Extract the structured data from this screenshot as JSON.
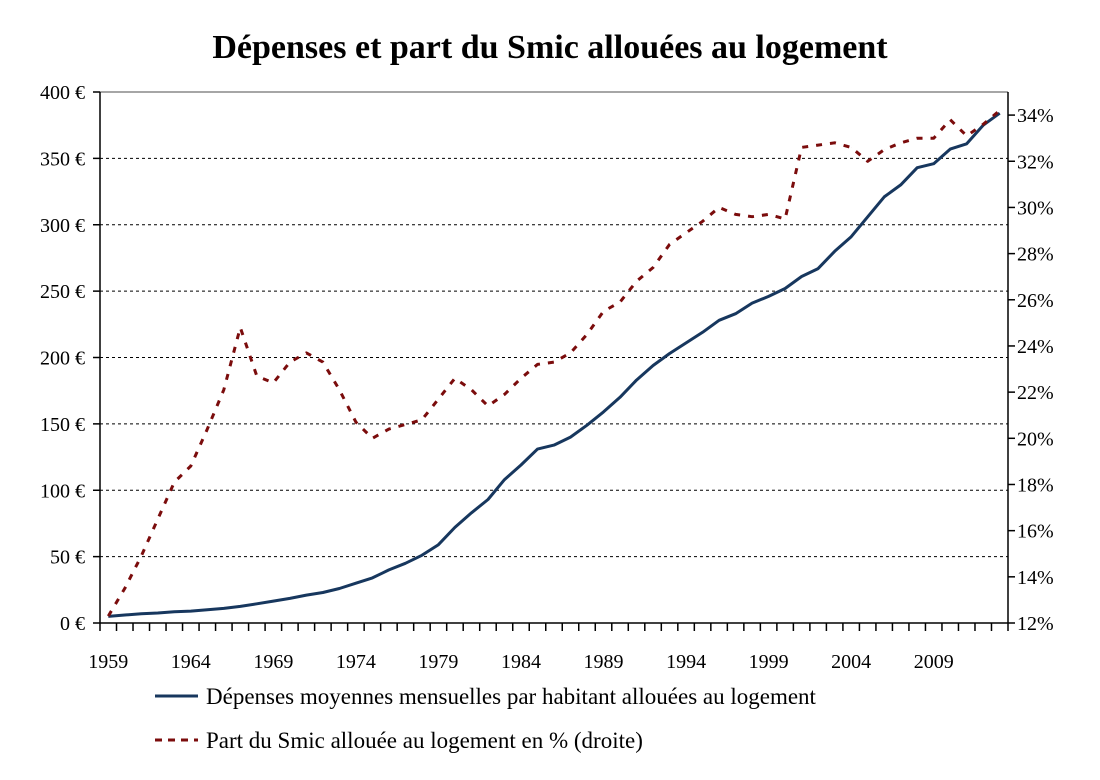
{
  "chart_data": {
    "type": "line",
    "title": "Dépenses et part du Smic allouées au logement",
    "x": [
      1959,
      1960,
      1961,
      1962,
      1963,
      1964,
      1965,
      1966,
      1967,
      1968,
      1969,
      1970,
      1971,
      1972,
      1973,
      1974,
      1975,
      1976,
      1977,
      1978,
      1979,
      1980,
      1981,
      1982,
      1983,
      1984,
      1985,
      1986,
      1987,
      1988,
      1989,
      1990,
      1991,
      1992,
      1993,
      1994,
      1995,
      1996,
      1997,
      1998,
      1999,
      2000,
      2001,
      2002,
      2003,
      2004,
      2005,
      2006,
      2007,
      2008,
      2009,
      2010,
      2011,
      2012,
      2013
    ],
    "x_tick_labels": [
      "1959",
      "1964",
      "1969",
      "1974",
      "1979",
      "1984",
      "1989",
      "1994",
      "1999",
      "2004",
      "2009"
    ],
    "y_left": {
      "min": 0,
      "max": 400,
      "step": 50,
      "tick_labels": [
        "0 €",
        "50 €",
        "100 €",
        "150 €",
        "200 €",
        "250 €",
        "300 €",
        "350 €",
        "400 €"
      ]
    },
    "y_right": {
      "min": 12,
      "max": 35,
      "step": 2,
      "tick_labels": [
        "12%",
        "14%",
        "16%",
        "18%",
        "20%",
        "22%",
        "24%",
        "26%",
        "28%",
        "30%",
        "32%",
        "34%"
      ]
    },
    "grid": "horizontal dotted",
    "legend_position": "bottom",
    "series": [
      {
        "name": "Dépenses moyennes mensuelles par habitant allouées au logement",
        "axis": "left",
        "color": "#17375E",
        "style": "solid",
        "values": [
          5,
          6,
          7,
          7.5,
          8.5,
          9,
          10,
          11,
          12.5,
          14.5,
          16.5,
          18.5,
          21,
          23,
          26,
          30,
          34,
          40,
          45,
          51,
          59,
          72,
          83,
          93,
          108,
          119,
          131,
          134,
          140,
          149,
          159,
          170,
          183,
          194,
          203,
          211,
          219,
          228,
          233,
          241,
          246,
          252,
          261,
          267,
          280,
          291,
          306,
          321,
          330,
          343,
          346,
          357,
          361,
          375,
          384
        ]
      },
      {
        "name": "Part du Smic allouée au logement en % (droite)",
        "axis": "right",
        "color": "#7B0C0C",
        "style": "dashed",
        "values": [
          12.3,
          13.5,
          14.9,
          16.5,
          18.1,
          18.8,
          20.4,
          22.1,
          24.8,
          22.7,
          22.4,
          23.3,
          23.7,
          23.3,
          22.1,
          20.7,
          20.0,
          20.4,
          20.6,
          20.8,
          21.7,
          22.6,
          22.1,
          21.4,
          21.9,
          22.6,
          23.2,
          23.3,
          23.7,
          24.5,
          25.5,
          25.9,
          26.8,
          27.4,
          28.4,
          28.9,
          29.4,
          30.0,
          29.7,
          29.6,
          29.7,
          29.5,
          32.6,
          32.7,
          32.8,
          32.6,
          32.0,
          32.5,
          32.8,
          33.0,
          33.0,
          33.8,
          33.1,
          33.6,
          34.2
        ]
      }
    ]
  }
}
